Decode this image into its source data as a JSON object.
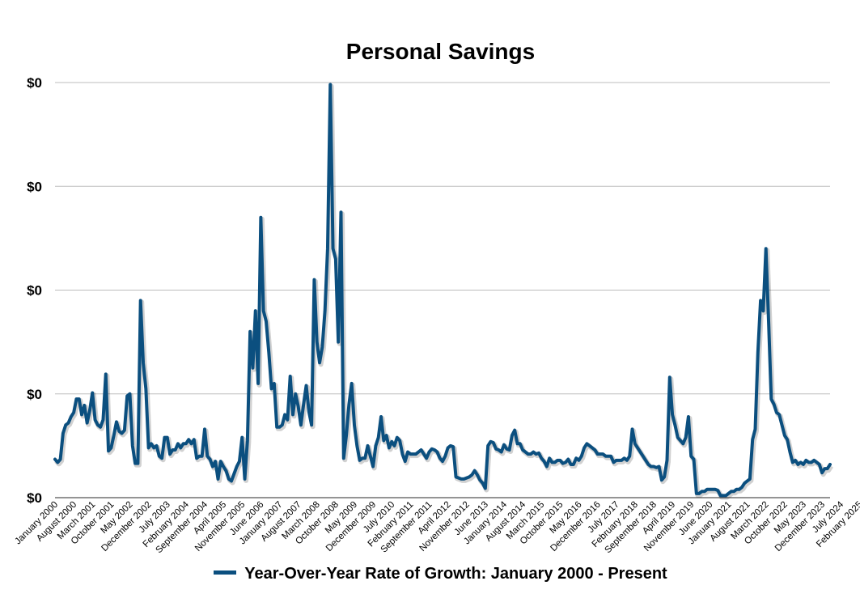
{
  "chart_data": {
    "type": "line",
    "title": "Personal Savings",
    "legend_position": "bottom",
    "grid": true,
    "y_tick_labels": [
      "$0",
      "$0",
      "$0",
      "$0",
      "$0"
    ],
    "ylim": [
      0,
      4
    ],
    "x_tick_labels": [
      "January 2000",
      "August 2000",
      "March 2001",
      "October 2001",
      "May 2002",
      "December 2002",
      "July 2003",
      "February 2004",
      "September 2004",
      "April 2005",
      "November 2005",
      "June 2006",
      "January 2007",
      "August 2007",
      "March 2008",
      "October 2008",
      "May 2009",
      "December 2009",
      "July 2010",
      "February 2011",
      "September 2011",
      "April 2012",
      "November 2012",
      "June 2013",
      "January 2014",
      "August 2014",
      "March 2015",
      "October 2015",
      "May 2016",
      "December 2016",
      "July 2017",
      "February 2018",
      "September 2018",
      "April 2019",
      "November 2019",
      "June 2020",
      "January 2021",
      "August 2021",
      "March 2022",
      "October 2022",
      "May 2023",
      "December 2023",
      "July 2024",
      "February 2025"
    ],
    "series": [
      {
        "name": "Year-Over-Year Rate of Growth: January 2000 - Present",
        "color": "#0b4f7f",
        "values": [
          0.37,
          0.34,
          0.37,
          0.62,
          0.7,
          0.72,
          0.78,
          0.82,
          0.95,
          0.95,
          0.8,
          0.89,
          0.72,
          0.84,
          1.01,
          0.75,
          0.7,
          0.68,
          0.75,
          1.19,
          0.45,
          0.48,
          0.6,
          0.73,
          0.64,
          0.62,
          0.65,
          0.98,
          1.0,
          0.5,
          0.33,
          0.33,
          1.9,
          1.3,
          1.05,
          0.48,
          0.52,
          0.48,
          0.5,
          0.4,
          0.38,
          0.58,
          0.58,
          0.42,
          0.46,
          0.46,
          0.52,
          0.48,
          0.52,
          0.52,
          0.56,
          0.52,
          0.56,
          0.38,
          0.4,
          0.4,
          0.66,
          0.4,
          0.37,
          0.3,
          0.35,
          0.18,
          0.35,
          0.3,
          0.26,
          0.18,
          0.16,
          0.23,
          0.3,
          0.35,
          0.58,
          0.18,
          0.55,
          1.6,
          1.25,
          1.8,
          1.1,
          2.7,
          1.8,
          1.7,
          1.4,
          1.05,
          1.1,
          0.68,
          0.68,
          0.7,
          0.8,
          0.75,
          1.17,
          0.8,
          1.0,
          0.88,
          0.7,
          0.9,
          1.08,
          0.83,
          0.7,
          2.1,
          1.5,
          1.3,
          1.45,
          1.8,
          2.4,
          3.98,
          2.4,
          2.3,
          1.5,
          2.75,
          0.38,
          0.6,
          0.9,
          1.1,
          0.7,
          0.5,
          0.36,
          0.38,
          0.38,
          0.5,
          0.4,
          0.3,
          0.5,
          0.58,
          0.78,
          0.55,
          0.6,
          0.48,
          0.54,
          0.5,
          0.58,
          0.55,
          0.42,
          0.35,
          0.44,
          0.42,
          0.42,
          0.42,
          0.44,
          0.46,
          0.42,
          0.38,
          0.44,
          0.47,
          0.46,
          0.44,
          0.38,
          0.35,
          0.4,
          0.48,
          0.5,
          0.49,
          0.2,
          0.19,
          0.18,
          0.18,
          0.19,
          0.2,
          0.22,
          0.26,
          0.22,
          0.17,
          0.14,
          0.09,
          0.5,
          0.54,
          0.53,
          0.47,
          0.46,
          0.44,
          0.51,
          0.47,
          0.46,
          0.6,
          0.65,
          0.52,
          0.52,
          0.46,
          0.44,
          0.42,
          0.42,
          0.44,
          0.42,
          0.43,
          0.38,
          0.35,
          0.3,
          0.38,
          0.34,
          0.34,
          0.36,
          0.36,
          0.33,
          0.34,
          0.37,
          0.32,
          0.32,
          0.38,
          0.36,
          0.4,
          0.48,
          0.52,
          0.5,
          0.48,
          0.46,
          0.42,
          0.42,
          0.42,
          0.4,
          0.4,
          0.4,
          0.34,
          0.36,
          0.36,
          0.36,
          0.38,
          0.36,
          0.4,
          0.66,
          0.52,
          0.48,
          0.44,
          0.4,
          0.36,
          0.32,
          0.3,
          0.3,
          0.29,
          0.3,
          0.17,
          0.2,
          0.36,
          1.16,
          0.8,
          0.7,
          0.58,
          0.55,
          0.52,
          0.58,
          0.78,
          0.4,
          0.37,
          0.04,
          0.04,
          0.06,
          0.06,
          0.08,
          0.08,
          0.08,
          0.08,
          0.07,
          0.02,
          0.02,
          0.02,
          0.04,
          0.06,
          0.06,
          0.08,
          0.08,
          0.1,
          0.14,
          0.16,
          0.18,
          0.56,
          0.66,
          1.4,
          1.9,
          1.8,
          2.4,
          1.7,
          0.95,
          0.9,
          0.82,
          0.8,
          0.7,
          0.6,
          0.56,
          0.44,
          0.34,
          0.36,
          0.32,
          0.34,
          0.32,
          0.36,
          0.34,
          0.34,
          0.36,
          0.34,
          0.32,
          0.24,
          0.28,
          0.28,
          0.32
        ]
      }
    ]
  }
}
